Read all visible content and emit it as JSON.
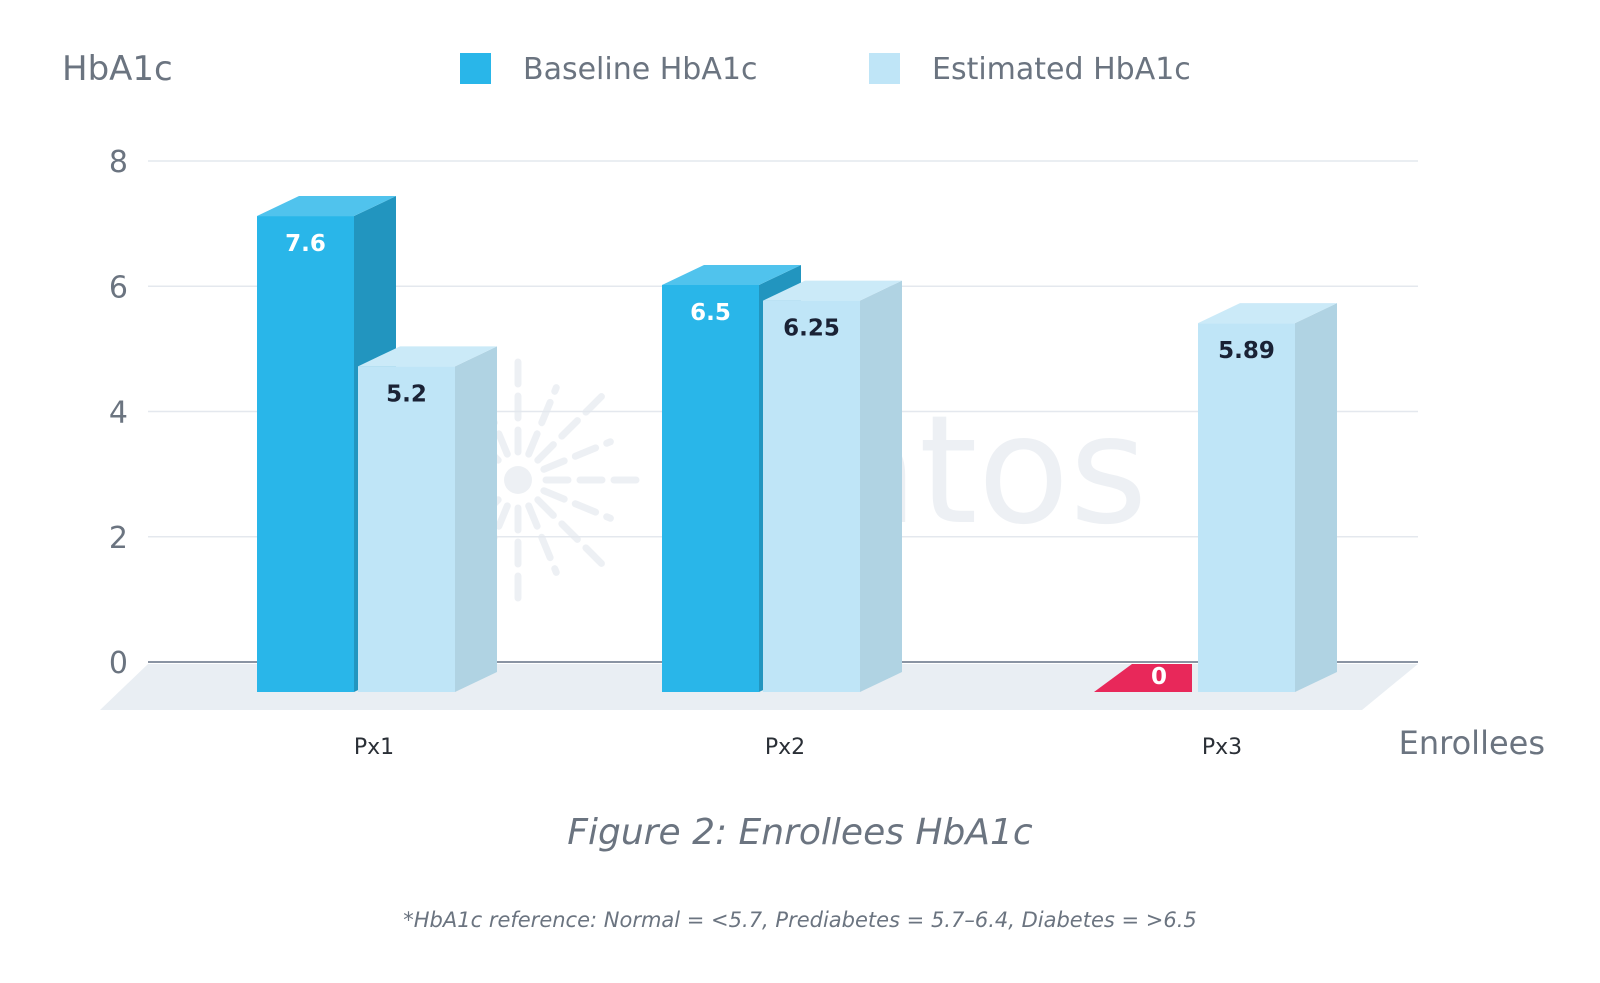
{
  "chart_data": {
    "type": "bar",
    "title": "Figure 2: Enrollees HbA1c",
    "note": "*HbA1c reference: Normal = <5.7, Prediabetes = 5.7–6.4, Diabetes = >6.5",
    "ylabel": "HbA1c",
    "xlabel": "Enrollees",
    "categories": [
      "Px1",
      "Px2",
      "Px3"
    ],
    "ylim": [
      0,
      8
    ],
    "yticks": [
      0,
      2,
      4,
      6,
      8
    ],
    "grid": true,
    "legend_position": "top",
    "series": [
      {
        "name": "Baseline HbA1c",
        "values": [
          7.6,
          6.5,
          0
        ],
        "labels": [
          "7.6",
          "6.5",
          "0"
        ],
        "color": "#29b6e9",
        "zero_color": "#e8285a"
      },
      {
        "name": "Estimated HbA1c",
        "values": [
          5.2,
          6.25,
          5.89
        ],
        "labels": [
          "5.2",
          "6.25",
          "5.89"
        ],
        "color": "#bfe5f7"
      }
    ],
    "watermark": "platos"
  }
}
